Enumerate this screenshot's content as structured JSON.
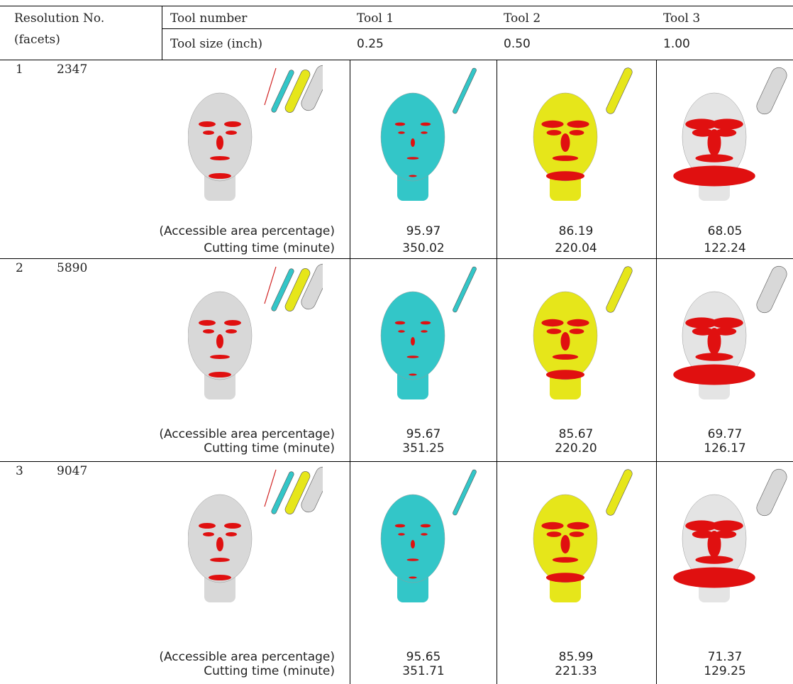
{
  "header": {
    "resolution": "Resolution No.",
    "facets": "(facets)",
    "tool_number": "Tool number",
    "tool_size": "Tool size (inch)",
    "tools": [
      {
        "number": "Tool 1",
        "size": "0.25"
      },
      {
        "number": "Tool 2",
        "size": "0.50"
      },
      {
        "number": "Tool 3",
        "size": "1.00"
      }
    ]
  },
  "labels": {
    "accessible": "(Accessible area percentage)",
    "time": "Cutting time (minute)"
  },
  "rows": [
    {
      "no": "1",
      "facets": "2347",
      "accessible": [
        "95.97",
        "86.19",
        "68.05"
      ],
      "time": [
        "350.02",
        "220.04",
        "122.24"
      ]
    },
    {
      "no": "2",
      "facets": "5890",
      "accessible": [
        "95.67",
        "85.67",
        "69.77"
      ],
      "time": [
        "351.25",
        "220.20",
        "126.17"
      ]
    },
    {
      "no": "3",
      "facets": "9047",
      "accessible": [
        "95.65",
        "85.99",
        "71.37"
      ],
      "time": [
        "351.71",
        "221.33",
        "129.25"
      ]
    }
  ]
}
